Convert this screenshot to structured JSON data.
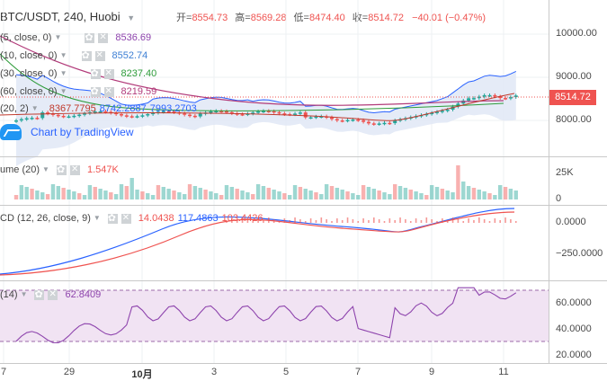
{
  "header": {
    "symbol": "BTC/USDT, 240, Huobi",
    "open_label": "开=",
    "open": "8554.73",
    "high_label": "高=",
    "high": "8569.28",
    "low_label": "低=",
    "low": "8474.40",
    "close_label": "收=",
    "close": "8514.72",
    "change": "−40.01 (−0.47%)"
  },
  "ma_legends": [
    {
      "name": "(5, close, 0)",
      "value": "8536.69",
      "color": "#8e44ad"
    },
    {
      "name": "(10, close, 0)",
      "value": "8552.74",
      "color": "#3d7fd4"
    },
    {
      "name": "(30, close, 0)",
      "value": "8237.40",
      "color": "#2e9b3a"
    },
    {
      "name": "(60, close, 0)",
      "value": "8219.59",
      "color": "#b23b7a"
    }
  ],
  "bb_legend": {
    "name": "(20, 2)",
    "values": [
      "8367.7795",
      "8742.2887",
      "7993.2703"
    ]
  },
  "watermark": "Chart by TradingView",
  "price_axis": [
    "10000.00",
    "9000.00",
    "8000.00"
  ],
  "current_price": "8514.72",
  "volume_legend": {
    "name": "ume (20)",
    "value": "1.547K"
  },
  "volume_axis": [
    "25K",
    "0"
  ],
  "macd_legend": {
    "name": "CD (12, 26, close, 9)",
    "values": [
      "14.0438",
      "117.4863",
      "103.4426"
    ]
  },
  "macd_axis": [
    "0.0000",
    "−250.0000"
  ],
  "rsi_legend": {
    "name": "(14)",
    "value": "62.8409"
  },
  "rsi_axis": [
    "60.0000",
    "40.0000",
    "20.0000"
  ],
  "time_axis": [
    "7",
    "29",
    "10月",
    "3",
    "5",
    "7",
    "9",
    "11"
  ],
  "colors": {
    "up": "#26a69a",
    "down": "#ef5350",
    "bb_fill": "#dfe6f5",
    "rsi_fill": "#f1e3f3"
  }
}
